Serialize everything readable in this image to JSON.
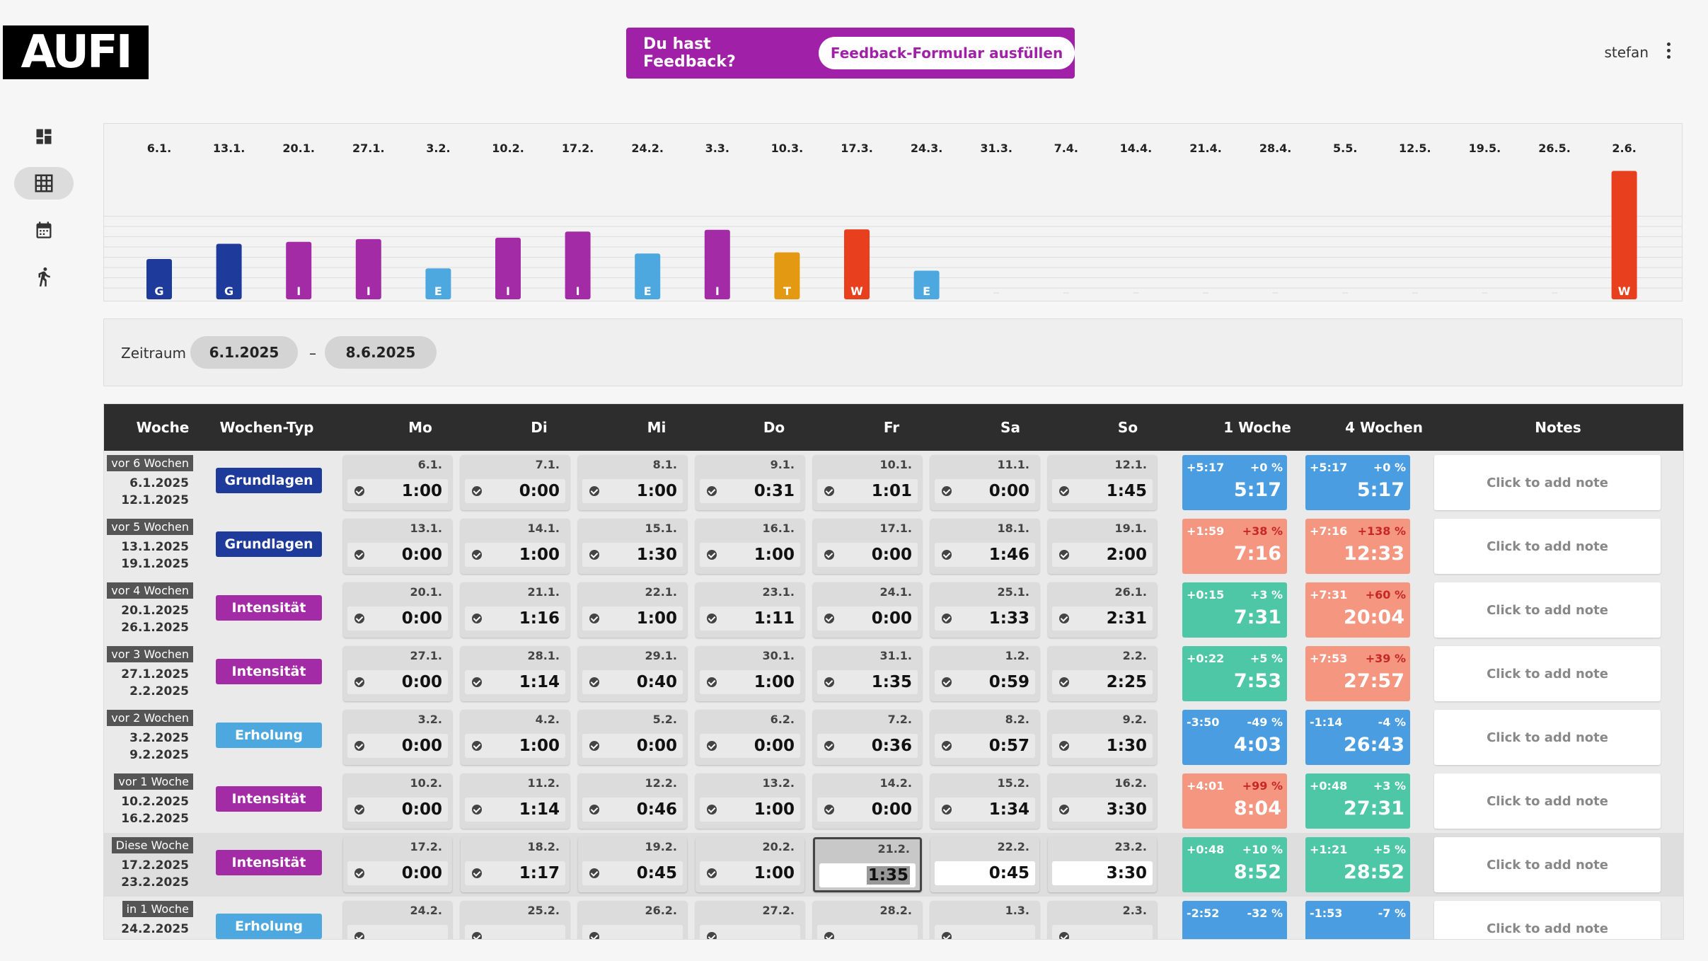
{
  "header": {
    "logo": "AUFI",
    "feedback_question": "Du hast Feedback?",
    "feedback_button": "Feedback-Formular ausfüllen",
    "user": "stefan"
  },
  "colors": {
    "purple": "#a020a8",
    "G": "#1e3a9a",
    "I": "#a42ba6",
    "E": "#4ea8e0",
    "T": "#e39a12",
    "W": "#e8401e",
    "blue": "#4a9de0",
    "red": "#f59680",
    "green": "#4dc7a6"
  },
  "sidebar": [
    "dashboard-icon",
    "table-icon",
    "calendar-icon",
    "runner-icon"
  ],
  "chart_data": {
    "type": "bar",
    "categories": [
      "6.1.",
      "13.1.",
      "20.1.",
      "27.1.",
      "3.2.",
      "10.2.",
      "17.2.",
      "24.2.",
      "3.3.",
      "10.3.",
      "17.3.",
      "24.3.",
      "31.3.",
      "7.4.",
      "14.4.",
      "21.4.",
      "28.4.",
      "5.5.",
      "12.5.",
      "19.5.",
      "26.5.",
      "2.6."
    ],
    "series": [
      {
        "values": [
          5.28,
          7.27,
          7.52,
          7.88,
          4.05,
          8.07,
          8.87,
          6.0,
          9.1,
          6.15,
          9.15,
          3.75,
          0,
          0,
          0,
          0,
          0,
          0,
          0,
          0,
          0,
          16.8
        ],
        "labels": [
          "G",
          "G",
          "I",
          "I",
          "E",
          "I",
          "I",
          "E",
          "I",
          "T",
          "W",
          "E",
          "",
          "",
          "",
          "",
          "",
          "",
          "",
          "",
          "",
          "W"
        ]
      }
    ],
    "grid": true
  },
  "zeitraum": {
    "label": "Zeitraum",
    "from": "6.1.2025",
    "sep": "–",
    "to": "8.6.2025"
  },
  "table": {
    "headers": [
      "Woche",
      "Wochen-Typ",
      "Mo",
      "Di",
      "Mi",
      "Do",
      "Fr",
      "Sa",
      "So",
      "1 Woche",
      "4 Wochen",
      "Notes"
    ],
    "note_placeholder": "Click to add note",
    "rows": [
      {
        "rel": "vor 6 Wochen",
        "from": "6.1.2025",
        "to": "12.1.2025",
        "type": "Grundlagen",
        "type_color": "#1e3a9a",
        "dates": [
          "6.1.",
          "7.1.",
          "8.1.",
          "9.1.",
          "10.1.",
          "11.1.",
          "12.1."
        ],
        "times": [
          "1:00",
          "0:00",
          "1:00",
          "0:31",
          "1:01",
          "0:00",
          "1:45"
        ],
        "w1": {
          "a": "+5:17",
          "p": "+0 %",
          "t": "5:17",
          "c": "blue"
        },
        "w4": {
          "a": "+5:17",
          "p": "+0 %",
          "t": "5:17",
          "c": "blue"
        }
      },
      {
        "rel": "vor 5 Wochen",
        "from": "13.1.2025",
        "to": "19.1.2025",
        "type": "Grundlagen",
        "type_color": "#1e3a9a",
        "dates": [
          "13.1.",
          "14.1.",
          "15.1.",
          "16.1.",
          "17.1.",
          "18.1.",
          "19.1."
        ],
        "times": [
          "0:00",
          "1:00",
          "1:30",
          "1:00",
          "0:00",
          "1:46",
          "2:00"
        ],
        "w1": {
          "a": "+1:59",
          "p": "+38 %",
          "t": "7:16",
          "c": "red"
        },
        "w4": {
          "a": "+7:16",
          "p": "+138 %",
          "t": "12:33",
          "c": "red"
        }
      },
      {
        "rel": "vor 4 Wochen",
        "from": "20.1.2025",
        "to": "26.1.2025",
        "type": "Intensität",
        "type_color": "#a42ba6",
        "dates": [
          "20.1.",
          "21.1.",
          "22.1.",
          "23.1.",
          "24.1.",
          "25.1.",
          "26.1."
        ],
        "times": [
          "0:00",
          "1:16",
          "1:00",
          "1:11",
          "0:00",
          "1:33",
          "2:31"
        ],
        "w1": {
          "a": "+0:15",
          "p": "+3 %",
          "t": "7:31",
          "c": "green"
        },
        "w4": {
          "a": "+7:31",
          "p": "+60 %",
          "t": "20:04",
          "c": "red"
        }
      },
      {
        "rel": "vor 3 Wochen",
        "from": "27.1.2025",
        "to": "2.2.2025",
        "type": "Intensität",
        "type_color": "#a42ba6",
        "dates": [
          "27.1.",
          "28.1.",
          "29.1.",
          "30.1.",
          "31.1.",
          "1.2.",
          "2.2."
        ],
        "times": [
          "0:00",
          "1:14",
          "0:40",
          "1:00",
          "1:35",
          "0:59",
          "2:25"
        ],
        "w1": {
          "a": "+0:22",
          "p": "+5 %",
          "t": "7:53",
          "c": "green"
        },
        "w4": {
          "a": "+7:53",
          "p": "+39 %",
          "t": "27:57",
          "c": "red"
        }
      },
      {
        "rel": "vor 2 Wochen",
        "from": "3.2.2025",
        "to": "9.2.2025",
        "type": "Erholung",
        "type_color": "#4ea8e0",
        "dates": [
          "3.2.",
          "4.2.",
          "5.2.",
          "6.2.",
          "7.2.",
          "8.2.",
          "9.2."
        ],
        "times": [
          "0:00",
          "1:00",
          "0:00",
          "0:00",
          "0:36",
          "0:57",
          "1:30"
        ],
        "w1": {
          "a": "-3:50",
          "p": "-49 %",
          "t": "4:03",
          "c": "blue"
        },
        "w4": {
          "a": "-1:14",
          "p": "-4 %",
          "t": "26:43",
          "c": "blue"
        }
      },
      {
        "rel": "vor 1 Woche",
        "from": "10.2.2025",
        "to": "16.2.2025",
        "type": "Intensität",
        "type_color": "#a42ba6",
        "dates": [
          "10.2.",
          "11.2.",
          "12.2.",
          "13.2.",
          "14.2.",
          "15.2.",
          "16.2."
        ],
        "times": [
          "0:00",
          "1:14",
          "0:46",
          "1:00",
          "0:00",
          "1:34",
          "3:30"
        ],
        "w1": {
          "a": "+4:01",
          "p": "+99 %",
          "t": "8:04",
          "c": "red"
        },
        "w4": {
          "a": "+0:48",
          "p": "+3 %",
          "t": "27:31",
          "c": "green"
        }
      },
      {
        "rel": "Diese Woche",
        "from": "17.2.2025",
        "to": "23.2.2025",
        "type": "Intensität",
        "type_color": "#a42ba6",
        "dates": [
          "17.2.",
          "18.2.",
          "19.2.",
          "20.2.",
          "21.2.",
          "22.2.",
          "23.2."
        ],
        "times": [
          "0:00",
          "1:17",
          "0:45",
          "1:00",
          "1:35",
          "0:45",
          "3:30"
        ],
        "w1": {
          "a": "+0:48",
          "p": "+10 %",
          "t": "8:52",
          "c": "green"
        },
        "w4": {
          "a": "+1:21",
          "p": "+5 %",
          "t": "28:52",
          "c": "green"
        }
      },
      {
        "rel": "in 1 Woche",
        "from": "24.2.2025",
        "to": "",
        "type": "Erholung",
        "type_color": "#4ea8e0",
        "dates": [
          "24.2.",
          "25.2.",
          "26.2.",
          "27.2.",
          "28.2.",
          "1.3.",
          "2.3."
        ],
        "times": [
          "",
          "",
          "",
          "",
          "",
          "",
          ""
        ],
        "w1": {
          "a": "-2:52",
          "p": "-32 %",
          "t": "",
          "c": "blue"
        },
        "w4": {
          "a": "-1:53",
          "p": "-7 %",
          "t": "",
          "c": "blue"
        }
      }
    ]
  }
}
